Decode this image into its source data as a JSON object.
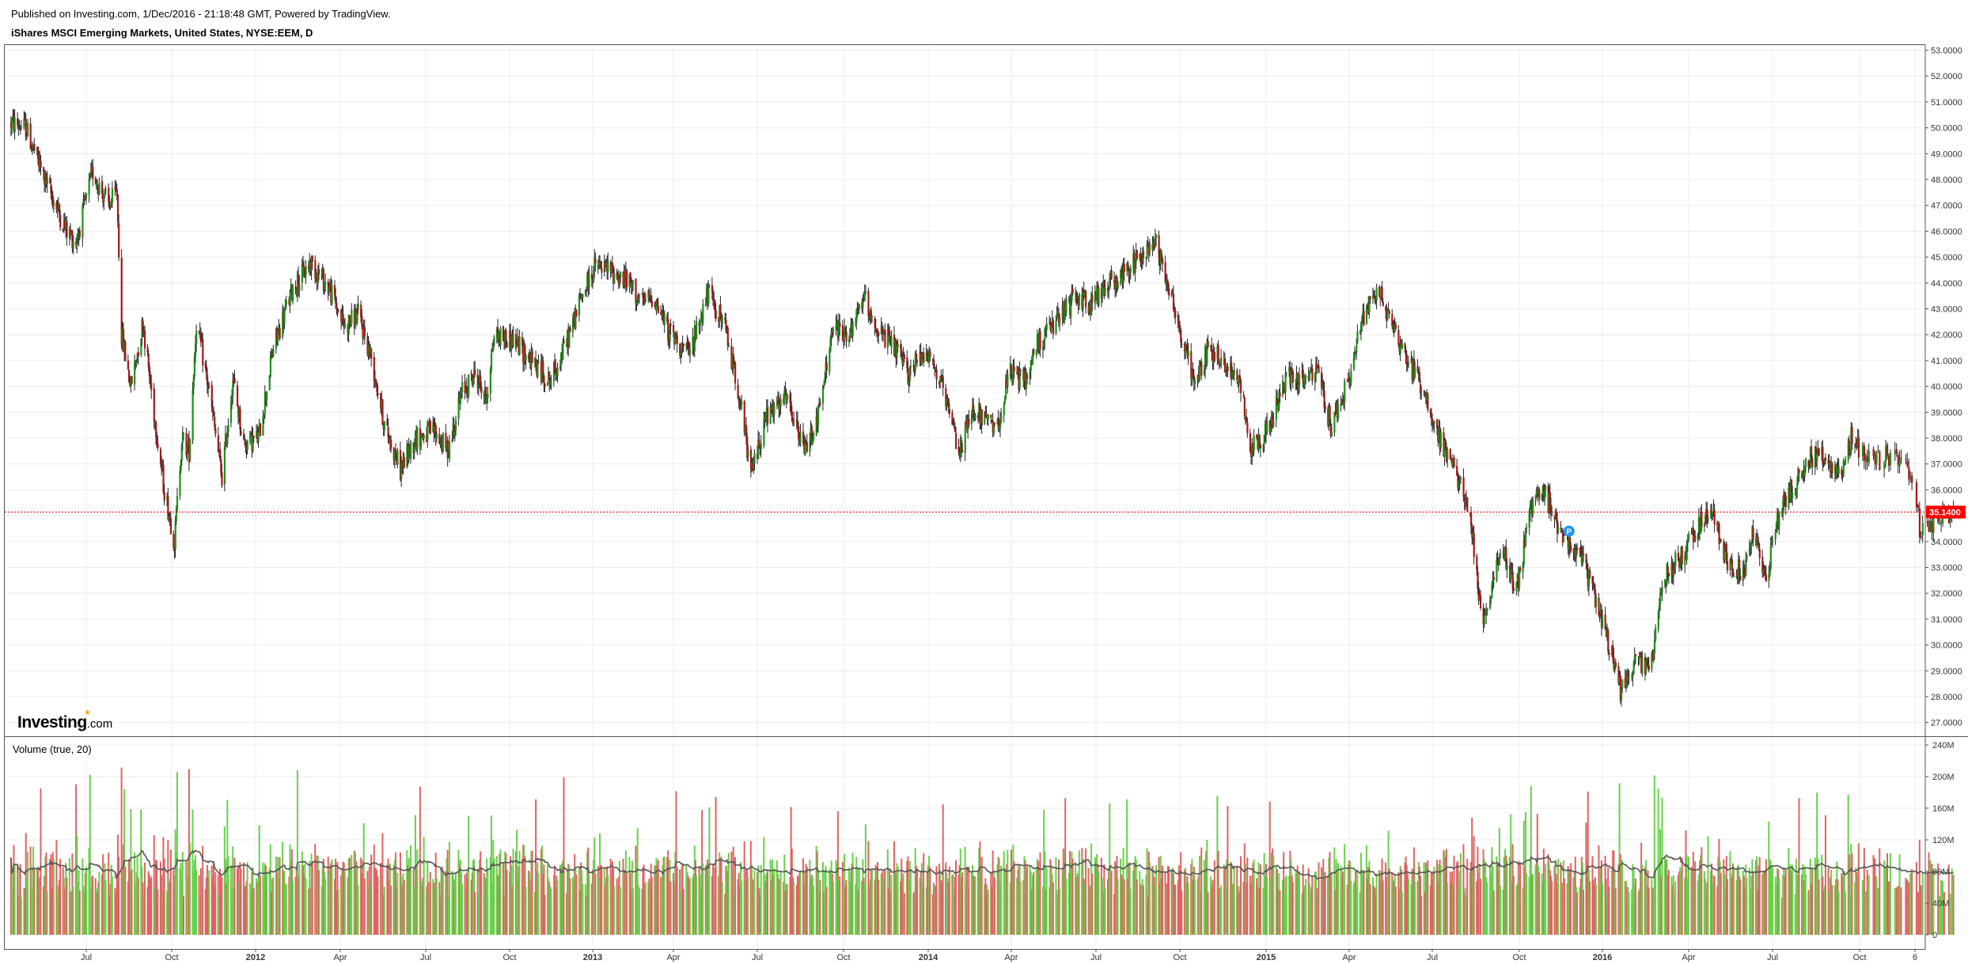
{
  "header": {
    "published": "Published on Investing.com, 1/Dec/2016 - 21:18:48 GMT, Powered by TradingView.",
    "symbol": "iShares MSCI Emerging Markets, United States, NYSE:EEM, D"
  },
  "logo": {
    "brand": "Investing",
    "suffix": ".com"
  },
  "chart_data": [
    {
      "type": "candlestick",
      "title": "iShares MSCI Emerging Markets, United States, NYSE:EEM, D",
      "ylim": [
        26.5,
        53.2
      ],
      "y_ticks": [
        "27.0000",
        "28.0000",
        "29.0000",
        "30.0000",
        "31.0000",
        "32.0000",
        "33.0000",
        "34.0000",
        "35.0000",
        "36.0000",
        "37.0000",
        "38.0000",
        "39.0000",
        "40.0000",
        "41.0000",
        "42.0000",
        "43.0000",
        "44.0000",
        "45.0000",
        "46.0000",
        "47.0000",
        "48.0000",
        "49.0000",
        "50.0000",
        "51.0000",
        "52.0000",
        "53.0000"
      ],
      "x_ticks": [
        {
          "label": "Jul",
          "date": "2011-07-01",
          "bold": false
        },
        {
          "label": "Oct",
          "date": "2011-10-01",
          "bold": false
        },
        {
          "label": "2012",
          "date": "2012-01-01",
          "bold": true
        },
        {
          "label": "Apr",
          "date": "2012-04-01",
          "bold": false
        },
        {
          "label": "Jul",
          "date": "2012-07-01",
          "bold": false
        },
        {
          "label": "Oct",
          "date": "2012-10-01",
          "bold": false
        },
        {
          "label": "2013",
          "date": "2013-01-01",
          "bold": true
        },
        {
          "label": "Apr",
          "date": "2013-04-01",
          "bold": false
        },
        {
          "label": "Jul",
          "date": "2013-07-01",
          "bold": false
        },
        {
          "label": "Oct",
          "date": "2013-10-01",
          "bold": false
        },
        {
          "label": "2014",
          "date": "2014-01-01",
          "bold": true
        },
        {
          "label": "Apr",
          "date": "2014-04-01",
          "bold": false
        },
        {
          "label": "Jul",
          "date": "2014-07-01",
          "bold": false
        },
        {
          "label": "Oct",
          "date": "2014-10-01",
          "bold": false
        },
        {
          "label": "2015",
          "date": "2015-01-01",
          "bold": true
        },
        {
          "label": "Apr",
          "date": "2015-04-01",
          "bold": false
        },
        {
          "label": "Jul",
          "date": "2015-07-01",
          "bold": false
        },
        {
          "label": "Oct",
          "date": "2015-10-01",
          "bold": false
        },
        {
          "label": "2016",
          "date": "2016-01-01",
          "bold": true
        },
        {
          "label": "Apr",
          "date": "2016-04-01",
          "bold": false
        },
        {
          "label": "Jul",
          "date": "2016-07-01",
          "bold": false
        },
        {
          "label": "Oct",
          "date": "2016-10-01",
          "bold": false
        },
        {
          "label": "6",
          "date": "2016-11-06",
          "bold": false
        }
      ],
      "price_path": [
        [
          "2011-04-11",
          50.2
        ],
        [
          "2011-04-27",
          50.0
        ],
        [
          "2011-05-15",
          48.2
        ],
        [
          "2011-06-10",
          46.0
        ],
        [
          "2011-06-20",
          45.6
        ],
        [
          "2011-07-08",
          48.3
        ],
        [
          "2011-07-25",
          47.0
        ],
        [
          "2011-08-03",
          47.5
        ],
        [
          "2011-08-08",
          42.0
        ],
        [
          "2011-08-18",
          40.0
        ],
        [
          "2011-08-31",
          42.5
        ],
        [
          "2011-09-10",
          39.5
        ],
        [
          "2011-09-23",
          36.0
        ],
        [
          "2011-10-04",
          34.0
        ],
        [
          "2011-10-12",
          38.0
        ],
        [
          "2011-10-20",
          37.5
        ],
        [
          "2011-10-28",
          42.5
        ],
        [
          "2011-11-10",
          40.0
        ],
        [
          "2011-11-25",
          36.5
        ],
        [
          "2011-12-07",
          40.3
        ],
        [
          "2011-12-19",
          37.8
        ],
        [
          "2012-01-04",
          38.0
        ],
        [
          "2012-01-20",
          41.5
        ],
        [
          "2012-02-10",
          43.8
        ],
        [
          "2012-02-29",
          44.8
        ],
        [
          "2012-03-20",
          43.8
        ],
        [
          "2012-04-06",
          42.3
        ],
        [
          "2012-04-20",
          42.8
        ],
        [
          "2012-05-05",
          41.0
        ],
        [
          "2012-05-18",
          38.5
        ],
        [
          "2012-06-04",
          36.8
        ],
        [
          "2012-06-20",
          38.0
        ],
        [
          "2012-07-10",
          38.3
        ],
        [
          "2012-07-25",
          37.5
        ],
        [
          "2012-08-10",
          39.8
        ],
        [
          "2012-08-25",
          40.5
        ],
        [
          "2012-09-05",
          39.5
        ],
        [
          "2012-09-14",
          42.0
        ],
        [
          "2012-10-05",
          41.8
        ],
        [
          "2012-10-25",
          41.0
        ],
        [
          "2012-11-15",
          40.2
        ],
        [
          "2012-12-01",
          41.5
        ],
        [
          "2012-12-20",
          43.5
        ],
        [
          "2013-01-03",
          44.6
        ],
        [
          "2013-01-20",
          44.5
        ],
        [
          "2013-02-10",
          44.0
        ],
        [
          "2013-02-25",
          43.2
        ],
        [
          "2013-03-10",
          43.5
        ],
        [
          "2013-03-25",
          42.2
        ],
        [
          "2013-04-18",
          41.2
        ],
        [
          "2013-05-08",
          43.6
        ],
        [
          "2013-05-25",
          42.5
        ],
        [
          "2013-06-10",
          40.0
        ],
        [
          "2013-06-24",
          36.6
        ],
        [
          "2013-07-10",
          38.8
        ],
        [
          "2013-08-01",
          39.5
        ],
        [
          "2013-08-20",
          37.5
        ],
        [
          "2013-09-05",
          39.0
        ],
        [
          "2013-09-19",
          42.2
        ],
        [
          "2013-10-10",
          42.0
        ],
        [
          "2013-10-22",
          43.5
        ],
        [
          "2013-11-10",
          42.0
        ],
        [
          "2013-11-25",
          41.5
        ],
        [
          "2013-12-10",
          40.5
        ],
        [
          "2013-12-30",
          41.5
        ],
        [
          "2014-01-15",
          40.0
        ],
        [
          "2014-02-03",
          37.5
        ],
        [
          "2014-02-20",
          39.2
        ],
        [
          "2014-03-14",
          38.2
        ],
        [
          "2014-03-31",
          40.5
        ],
        [
          "2014-04-15",
          40.2
        ],
        [
          "2014-05-01",
          41.8
        ],
        [
          "2014-05-20",
          42.5
        ],
        [
          "2014-06-10",
          43.5
        ],
        [
          "2014-06-25",
          43.2
        ],
        [
          "2014-07-15",
          44.0
        ],
        [
          "2014-08-05",
          44.5
        ],
        [
          "2014-08-20",
          45.0
        ],
        [
          "2014-09-03",
          45.8
        ],
        [
          "2014-09-20",
          43.8
        ],
        [
          "2014-10-05",
          41.5
        ],
        [
          "2014-10-17",
          40.2
        ],
        [
          "2014-11-01",
          41.5
        ],
        [
          "2014-11-20",
          40.8
        ],
        [
          "2014-12-05",
          40.0
        ],
        [
          "2014-12-16",
          37.6
        ],
        [
          "2015-01-05",
          38.5
        ],
        [
          "2015-01-25",
          40.5
        ],
        [
          "2015-02-10",
          40.2
        ],
        [
          "2015-02-25",
          40.6
        ],
        [
          "2015-03-12",
          38.5
        ],
        [
          "2015-03-30",
          40.0
        ],
        [
          "2015-04-15",
          42.5
        ],
        [
          "2015-04-28",
          43.8
        ],
        [
          "2015-05-15",
          42.8
        ],
        [
          "2015-06-01",
          41.2
        ],
        [
          "2015-06-20",
          40.0
        ],
        [
          "2015-07-08",
          38.0
        ],
        [
          "2015-07-22",
          37.0
        ],
        [
          "2015-08-10",
          35.0
        ],
        [
          "2015-08-24",
          30.5
        ],
        [
          "2015-09-05",
          33.0
        ],
        [
          "2015-09-15",
          33.5
        ],
        [
          "2015-09-28",
          32.2
        ],
        [
          "2015-10-15",
          35.5
        ],
        [
          "2015-10-30",
          35.8
        ],
        [
          "2015-11-15",
          34.5
        ],
        [
          "2015-12-01",
          33.8
        ],
        [
          "2015-12-15",
          32.8
        ],
        [
          "2016-01-05",
          30.5
        ],
        [
          "2016-01-20",
          28.2
        ],
        [
          "2016-02-05",
          29.5
        ],
        [
          "2016-02-20",
          29.0
        ],
        [
          "2016-03-05",
          32.5
        ],
        [
          "2016-03-25",
          33.5
        ],
        [
          "2016-04-15",
          34.8
        ],
        [
          "2016-04-28",
          35.0
        ],
        [
          "2016-05-15",
          33.0
        ],
        [
          "2016-05-31",
          32.8
        ],
        [
          "2016-06-10",
          34.5
        ],
        [
          "2016-06-24",
          32.5
        ],
        [
          "2016-07-10",
          35.5
        ],
        [
          "2016-07-25",
          36.2
        ],
        [
          "2016-08-10",
          37.3
        ],
        [
          "2016-08-25",
          37.2
        ],
        [
          "2016-09-10",
          36.5
        ],
        [
          "2016-09-22",
          38.0
        ],
        [
          "2016-10-10",
          37.0
        ],
        [
          "2016-10-25",
          37.5
        ],
        [
          "2016-11-04",
          36.5
        ],
        [
          "2016-11-10",
          34.2
        ],
        [
          "2016-11-20",
          34.8
        ],
        [
          "2016-12-01",
          35.14
        ]
      ],
      "last_price": {
        "label": "35.1400",
        "value": 35.14,
        "color": "#ff0000"
      },
      "split_marker": {
        "date": "2015-11-25",
        "value": 34.4,
        "label": "P"
      },
      "up_color": "#1e8f1e",
      "down_color": "#a31919",
      "grid": true
    },
    {
      "type": "bar",
      "title": "Volume (true, 20)",
      "ylim": [
        0,
        245
      ],
      "y_ticks": [
        "0",
        "40M",
        "80M",
        "120M",
        "160M",
        "200M",
        "240M"
      ],
      "tick_values": [
        0,
        40,
        80,
        120,
        160,
        200,
        240
      ],
      "unit": "M",
      "ma_period": 20,
      "up_color": "#69d04c",
      "down_color": "#e06363",
      "ma_color": "#555555",
      "grid": true
    }
  ]
}
